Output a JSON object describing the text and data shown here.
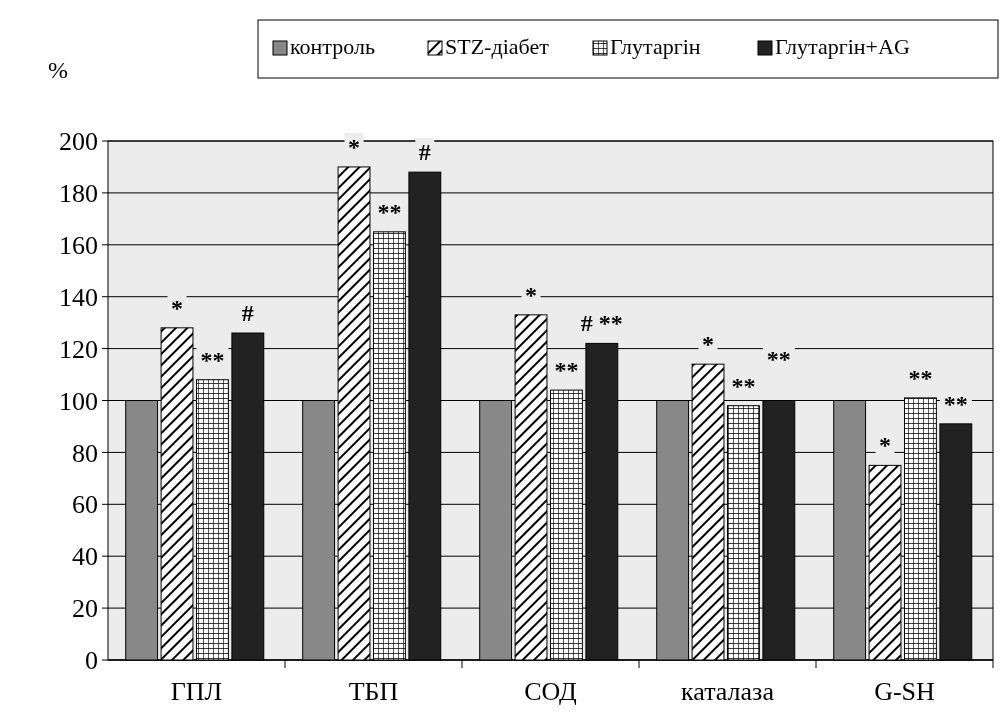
{
  "chart_data": {
    "type": "bar",
    "ylabel": "%",
    "categories": [
      "ГПЛ",
      "ТБП",
      "СОД",
      "каталаза",
      "G-SH"
    ],
    "series": [
      {
        "name": "контроль",
        "color": "#888888",
        "values": [
          100,
          100,
          100,
          100,
          100
        ]
      },
      {
        "name": "STZ-діабет",
        "color": "#000000",
        "values": [
          128,
          190,
          133,
          114,
          75
        ]
      },
      {
        "name": "Глутаргін",
        "color": "#000000",
        "values": [
          108,
          165,
          104,
          98,
          101
        ]
      },
      {
        "name": "Глутаргін+AG",
        "color": "#222222",
        "values": [
          126,
          188,
          122,
          100,
          91
        ]
      }
    ],
    "ylim": [
      0,
      200
    ],
    "yticks": [
      0,
      20,
      40,
      60,
      80,
      100,
      120,
      140,
      160,
      180,
      200
    ],
    "grid": "y",
    "legend": "top",
    "annotations": [
      {
        "text": "*",
        "x": "ГПЛ",
        "y": 128
      },
      {
        "text": "**",
        "x": "ГПЛ",
        "y": 108
      },
      {
        "text": "#",
        "x": "ГПЛ",
        "y": 126
      },
      {
        "text": "*",
        "x": "ТБП",
        "y": 190
      },
      {
        "text": "**",
        "x": "ТБП",
        "y": 165
      },
      {
        "text": "#",
        "x": "ТБП",
        "y": 188
      },
      {
        "text": "*",
        "x": "СОД",
        "y": 133
      },
      {
        "text": "**",
        "x": "СОД",
        "y": 104
      },
      {
        "text": "# **",
        "x": "СОД",
        "y": 122
      },
      {
        "text": "*",
        "x": "каталаза",
        "y": 114
      },
      {
        "text": "**",
        "x": "каталаза",
        "y": 98
      },
      {
        "text": "**",
        "x": "каталаза",
        "y": 100
      },
      {
        "text": "*",
        "x": "G-SH",
        "y": 75
      },
      {
        "text": "**",
        "x": "G-SH",
        "y": 101
      },
      {
        "text": "**",
        "x": "G-SH",
        "y": 91
      }
    ]
  }
}
